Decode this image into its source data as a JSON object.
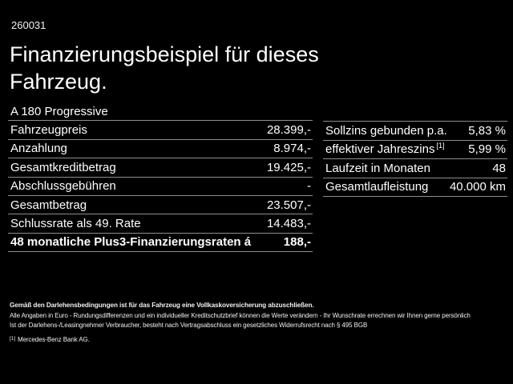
{
  "page": {
    "ref_number": "260031",
    "title_line1": "Finanzierungsbeispiel für dieses",
    "title_line2": "Fahrzeug.",
    "model": "A 180 Progressive"
  },
  "left_table": {
    "rows": [
      {
        "label": "Fahrzeugpreis",
        "value": "28.399,-"
      },
      {
        "label": "Anzahlung",
        "value": "8.974,-"
      },
      {
        "label": "Gesamtkreditbetrag",
        "value": "19.425,-"
      },
      {
        "label": "Abschlussgebühren",
        "value": "-"
      },
      {
        "label": "Gesamtbetrag",
        "value": "23.507,-"
      },
      {
        "label": "Schlussrate als 49. Rate",
        "value": "14.483,-"
      },
      {
        "label": "48 monatliche Plus3-Finanzierungsraten á",
        "value": "188,-"
      }
    ]
  },
  "right_table": {
    "rows": [
      {
        "label": "Sollzins gebunden p.a.",
        "value": "5,83 %"
      },
      {
        "label": "effektiver Jahreszins",
        "sup": "[1]",
        "value": "5,99 %"
      },
      {
        "label": "Laufzeit in Monaten",
        "value": "48"
      },
      {
        "label": "Gesamtlaufleistung",
        "value": "40.000 km"
      }
    ]
  },
  "footer": {
    "bold_line": "Gemäß den Darlehensbedingungen ist für das Fahrzeug eine Vollkaskoversicherung abzuschließen.",
    "line2": "Alle Angaben in Euro - Rundungsdifferenzen und ein individueller Kreditschutzbrief können die Werte verändern - Ihr Wunschrate errechnen wir Ihnen gerne persönlich",
    "line3": "Ist der Darlehens-/Leasingnehmer Verbraucher, besteht nach Vertragsabschluss ein gesetzliches Widerrufsrecht nach § 495 BGB",
    "footnote_marker": "[1]",
    "footnote_text": "Mercedes-Benz Bank AG."
  },
  "colors": {
    "background": "#000000",
    "text": "#ffffff",
    "divider": "#8e8e8e"
  }
}
